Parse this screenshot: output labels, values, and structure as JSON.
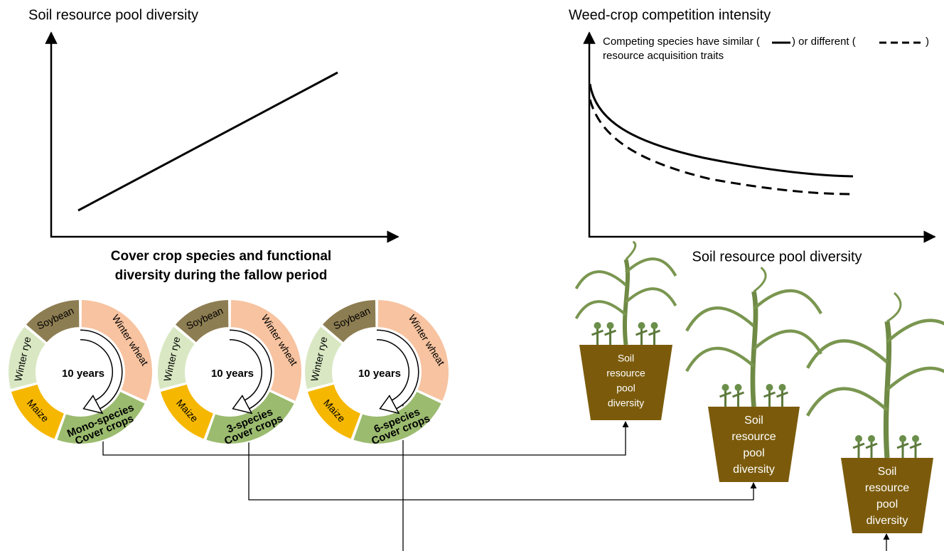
{
  "left_panel": {
    "y_label": "Soil resource pool diversity",
    "x_label_lines": [
      "Cover crop species and functional",
      "diversity during the fallow period"
    ]
  },
  "right_panel": {
    "y_label": "Weed-crop competition intensity",
    "legend": {
      "part1": "Competing species have similar (",
      "part2": ") or different (",
      "part3": ")",
      "line2": "resource acquisition traits"
    },
    "x_label": "Soil resource pool diversity"
  },
  "rotations": [
    {
      "winter_wheat": "Winter wheat",
      "cover_crops": [
        "Mono-species",
        "Cover crops"
      ],
      "maize": "Maize",
      "winter_rye": "Winter rye",
      "soybean": "Soybean",
      "center": "10 years"
    },
    {
      "winter_wheat": "Winter wheat",
      "cover_crops": [
        "3-species",
        "Cover crops"
      ],
      "maize": "Maize",
      "winter_rye": "Winter rye",
      "soybean": "Soybean",
      "center": "10 years"
    },
    {
      "winter_wheat": "Winter wheat",
      "cover_crops": [
        "6-species",
        "Cover crops"
      ],
      "maize": "Maize",
      "winter_rye": "Winter rye",
      "soybean": "Soybean",
      "center": "10 years"
    }
  ],
  "pots": [
    {
      "label_lines": [
        "Soil",
        "resource",
        "pool",
        "diversity"
      ]
    },
    {
      "label_lines": [
        "Soil",
        "resource",
        "pool",
        "diversity"
      ]
    },
    {
      "label_lines": [
        "Soil",
        "resource",
        "pool",
        "diversity"
      ]
    }
  ]
}
